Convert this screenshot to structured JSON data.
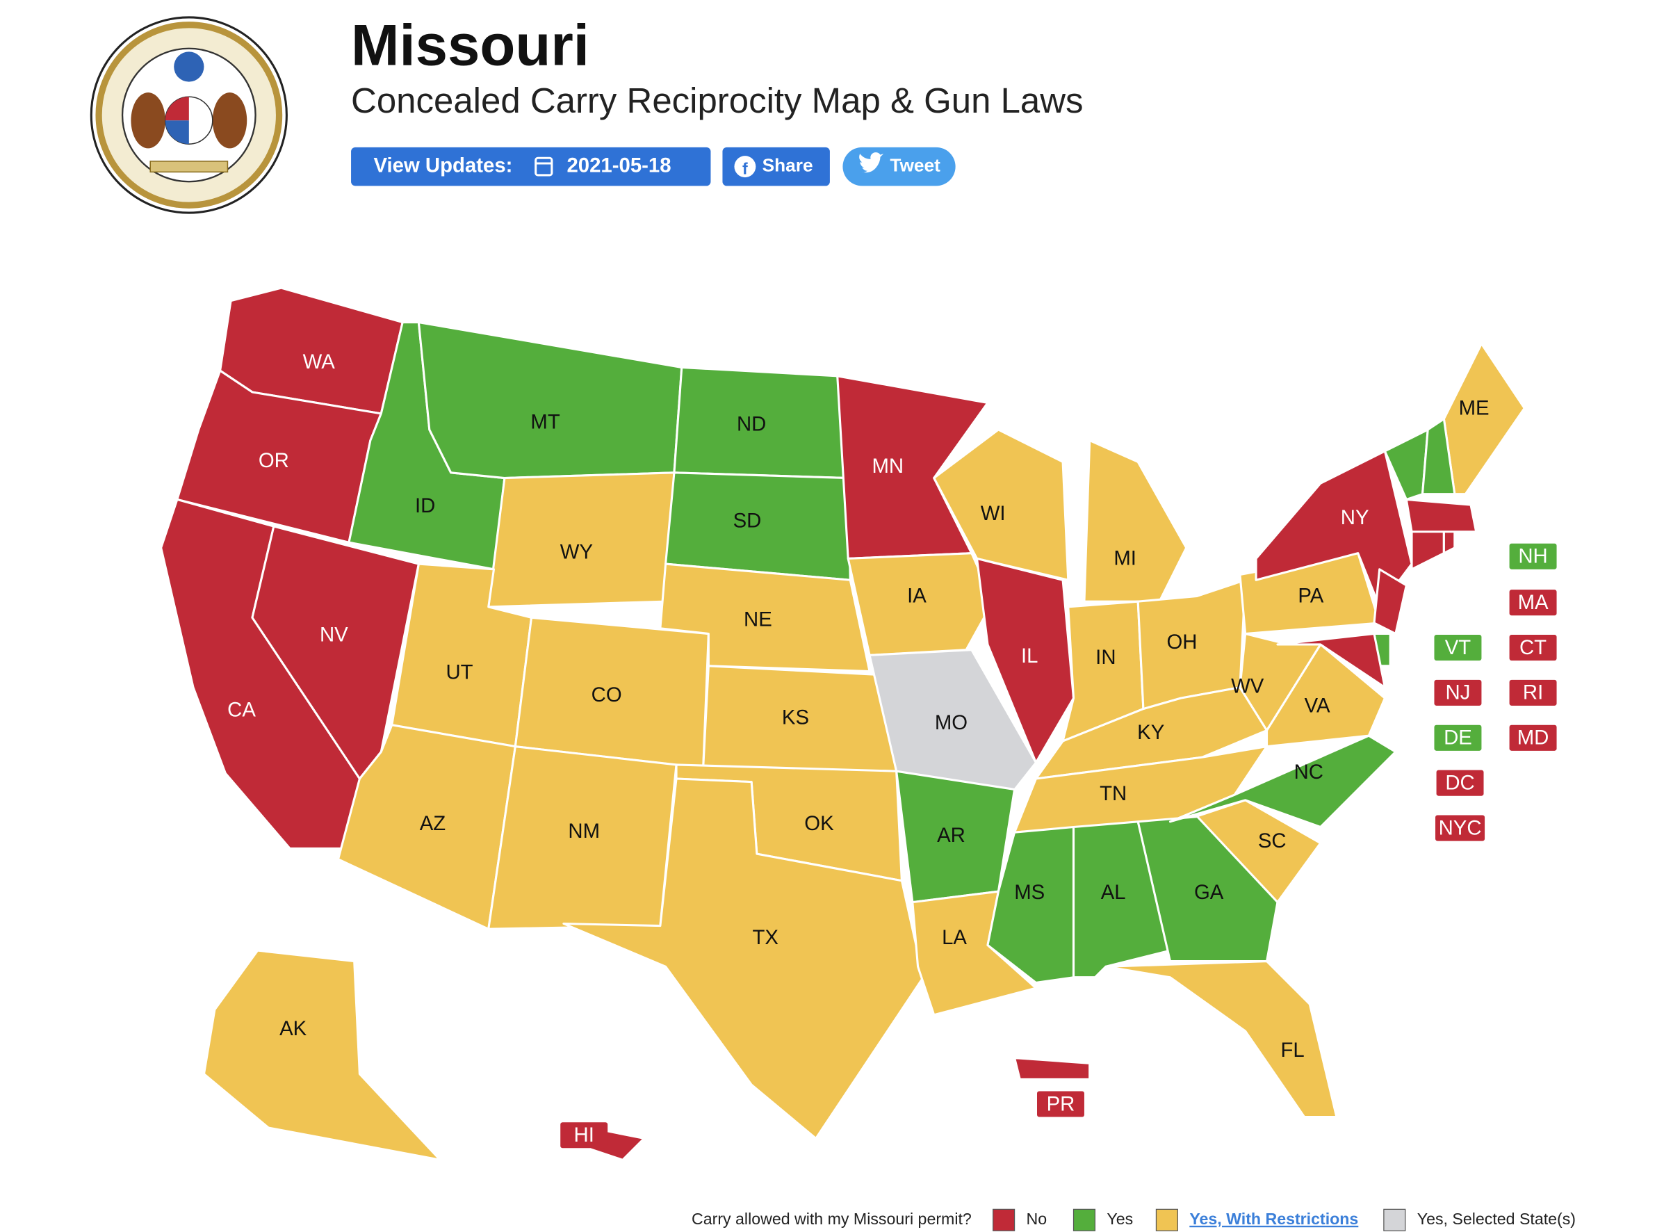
{
  "header": {
    "title": "Missouri",
    "subtitle": "Concealed Carry Reciprocity Map & Gun Laws",
    "update_label": "View Updates:",
    "update_date": "2021-05-18",
    "share": "Share",
    "tweet": "Tweet"
  },
  "map": {
    "regions": [
      {
        "label": "WA",
        "color": "#c02a37"
      },
      {
        "label": "OR",
        "color": "#c02a37"
      },
      {
        "label": "CA",
        "color": "#c02a37"
      },
      {
        "label": "NV",
        "color": "#c02a37"
      },
      {
        "label": "ID",
        "color": "#54ae3c"
      },
      {
        "label": "MT",
        "color": "#54ae3c"
      },
      {
        "label": "WY",
        "color": "#f0c453"
      },
      {
        "label": "UT",
        "color": "#f0c453"
      },
      {
        "label": "CO",
        "color": "#f0c453"
      },
      {
        "label": "AZ",
        "color": "#f0c453"
      },
      {
        "label": "NM",
        "color": "#f0c453"
      },
      {
        "label": "ND",
        "color": "#54ae3c"
      },
      {
        "label": "SD",
        "color": "#54ae3c"
      },
      {
        "label": "NE",
        "color": "#f0c453"
      },
      {
        "label": "KS",
        "color": "#f0c453"
      },
      {
        "label": "OK",
        "color": "#f0c453"
      },
      {
        "label": "TX",
        "color": "#f0c453"
      },
      {
        "label": "MN",
        "color": "#c02a37"
      },
      {
        "label": "IA",
        "color": "#f0c453"
      },
      {
        "label": "MO",
        "color": "#d4d5d8"
      },
      {
        "label": "AR",
        "color": "#54ae3c"
      },
      {
        "label": "LA",
        "color": "#f0c453"
      },
      {
        "label": "WI",
        "color": "#f0c453"
      },
      {
        "label": "IL",
        "color": "#c02a37"
      },
      {
        "label": "MI",
        "color": "#f0c453"
      },
      {
        "label": "IN",
        "color": "#f0c453"
      },
      {
        "label": "OH",
        "color": "#f0c453"
      },
      {
        "label": "KY",
        "color": "#f0c453"
      },
      {
        "label": "TN",
        "color": "#f0c453"
      },
      {
        "label": "MS",
        "color": "#54ae3c"
      },
      {
        "label": "AL",
        "color": "#54ae3c"
      },
      {
        "label": "GA",
        "color": "#54ae3c"
      },
      {
        "label": "FL",
        "color": "#f0c453"
      },
      {
        "label": "SC",
        "color": "#f0c453"
      },
      {
        "label": "NC",
        "color": "#54ae3c"
      },
      {
        "label": "VA",
        "color": "#f0c453"
      },
      {
        "label": "WV",
        "color": "#f0c453"
      },
      {
        "label": "PA",
        "color": "#f0c453"
      },
      {
        "label": "NY",
        "color": "#c02a37"
      },
      {
        "label": "ME",
        "color": "#f0c453"
      },
      {
        "label": "AK",
        "color": "#f0c453"
      },
      {
        "color": "#c02a37"
      },
      {
        "color": "#54ae3c"
      },
      {
        "color": "#c02a37"
      },
      {
        "color": "#c02a37"
      },
      {
        "color": "#c02a37"
      },
      {
        "color": "#c02a37"
      },
      {
        "color": "#54ae3c"
      },
      {
        "color": "#54ae3c"
      },
      {
        "color": "#c02a37"
      },
      {
        "color": "#c02a37"
      }
    ],
    "badges": [
      {
        "label": "NH",
        "color": "#54ae3c"
      },
      {
        "label": "MA",
        "color": "#c02a37"
      },
      {
        "label": "VT",
        "color": "#54ae3c"
      },
      {
        "label": "CT",
        "color": "#c02a37"
      },
      {
        "label": "NJ",
        "color": "#c02a37"
      },
      {
        "label": "RI",
        "color": "#c02a37"
      },
      {
        "label": "DE",
        "color": "#54ae3c"
      },
      {
        "label": "MD",
        "color": "#c02a37"
      },
      {
        "label": "DC",
        "color": "#c02a37"
      },
      {
        "label": "NYC",
        "color": "#c02a37"
      },
      {
        "label": "PR",
        "color": "#c02a37"
      },
      {
        "label": "HI",
        "color": "#c02a37"
      }
    ]
  },
  "legend": {
    "question": "Carry allowed with my Missouri permit?",
    "items": [
      {
        "label": "No",
        "color": "#c02a37"
      },
      {
        "label": "Yes",
        "color": "#54ae3c"
      },
      {
        "label": "Yes, With Restrictions",
        "color": "#f0c453"
      },
      {
        "label": "Yes, Selected State(s)",
        "color": "#d4d5d8"
      }
    ]
  }
}
